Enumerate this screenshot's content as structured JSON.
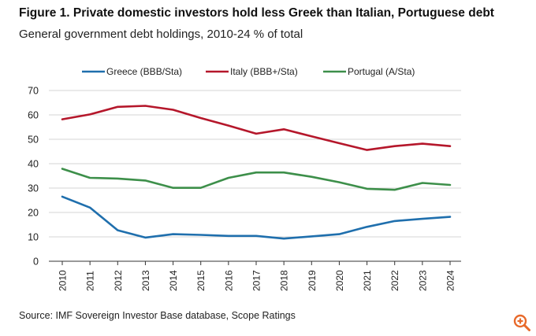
{
  "title": "Figure 1. Private domestic investors hold less Greek than Italian, Portuguese debt",
  "subtitle": "General government debt holdings, 2010-24 % of total",
  "source": "Source: IMF Sovereign Investor Base database, Scope Ratings",
  "chart_data": {
    "type": "line",
    "title": "Figure 1. Private domestic investors hold less Greek than Italian, Portuguese debt",
    "subtitle": "General government debt holdings, 2010-24 % of total",
    "xlabel": "",
    "ylabel": "",
    "x": [
      "2010",
      "2011",
      "2012",
      "2013",
      "2014",
      "2015",
      "2016",
      "2017",
      "2018",
      "2019",
      "2020",
      "2021",
      "2022",
      "2023",
      "2024"
    ],
    "ylim": [
      0,
      70
    ],
    "yticks": [
      "0",
      "10",
      "20",
      "30",
      "40",
      "50",
      "60",
      "70"
    ],
    "grid": true,
    "legend_position": "top",
    "series": [
      {
        "name": "Greece (BBB/Sta)",
        "color": "#1f6fad",
        "values": [
          26.5,
          22,
          12.7,
          9.7,
          11.1,
          10.8,
          10.4,
          10.4,
          9.3,
          10.2,
          11.1,
          14.1,
          16.5,
          17.4,
          18.2
        ]
      },
      {
        "name": "Italy (BBB+/Sta)",
        "color": "#b5172b",
        "values": [
          58.2,
          60.2,
          63.3,
          63.7,
          62.1,
          58.7,
          55.6,
          52.3,
          54.1,
          51.2,
          48.4,
          45.6,
          47.2,
          48.2,
          47.2
        ]
      },
      {
        "name": "Portugal (A/Sta)",
        "color": "#3d8f4a",
        "values": [
          37.9,
          34.2,
          33.9,
          33.1,
          30.1,
          30.1,
          34.2,
          36.4,
          36.4,
          34.6,
          32.4,
          29.7,
          29.3,
          32.1,
          31.3
        ]
      }
    ]
  },
  "icons": {
    "zoom": "zoom-in-icon"
  }
}
